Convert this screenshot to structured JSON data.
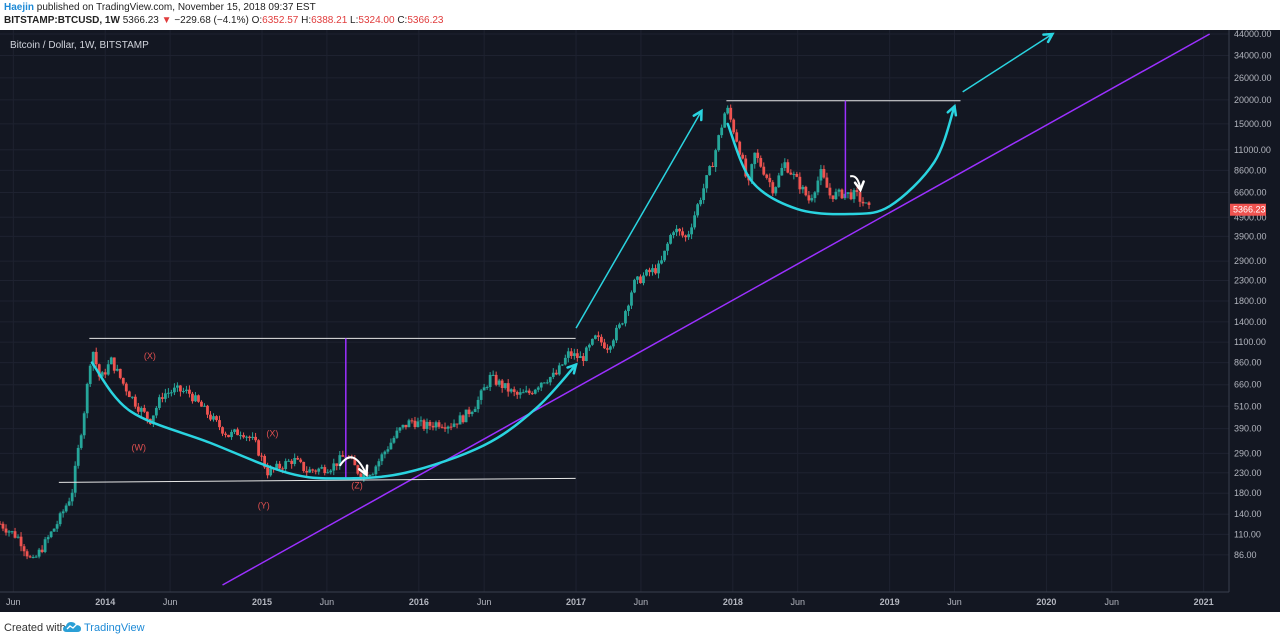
{
  "header": {
    "author": "Haejin",
    "published": "published on TradingView.com, November 15, 2018 09:37 EST",
    "symbol": "BITSTAMP:BTCUSD, 1W",
    "last": "5366.23",
    "change": "−229.68 (−4.1%)",
    "o_label": "O:",
    "o": "6352.57",
    "h_label": "H:",
    "h": "6388.21",
    "l_label": "L:",
    "l": "5324.00",
    "c_label": "C:",
    "c": "5366.23"
  },
  "footer": {
    "created": "Created with",
    "brand": "TradingView"
  },
  "colors": {
    "bg": "#131722",
    "grid": "#1e2230",
    "up": "#26a69a",
    "down": "#ef5350",
    "cyan": "#2ad4e0",
    "purple": "#9b30ff",
    "white": "#e6e6e6",
    "wave": "#e05050"
  },
  "chart_data": {
    "type": "candlestick",
    "title": "Bitcoin / Dollar, 1W, BITSTAMP",
    "log_scale": true,
    "ylim": [
      60,
      44000
    ],
    "xlim": [
      "2013-05-01",
      "2021-03-01"
    ],
    "y_ticks": [
      "86.00",
      "110.00",
      "140.00",
      "180.00",
      "230.00",
      "290.00",
      "390.00",
      "510.00",
      "660.00",
      "860.00",
      "1100.00",
      "1400.00",
      "1800.00",
      "2300.00",
      "2900.00",
      "3900.00",
      "4900.00",
      "6600.00",
      "8600.00",
      "11000.00",
      "15000.00",
      "20000.00",
      "26000.00",
      "34000.00",
      "44000.00"
    ],
    "y_tick_values": [
      86,
      110,
      140,
      180,
      230,
      290,
      390,
      510,
      660,
      860,
      1100,
      1400,
      1800,
      2300,
      2900,
      3900,
      4900,
      6600,
      8600,
      11000,
      15000,
      20000,
      26000,
      34000,
      44000
    ],
    "x_ticks": [
      {
        "label": "Jun",
        "date": "2013-06-01"
      },
      {
        "label": "2014",
        "date": "2014-01-01"
      },
      {
        "label": "Jun",
        "date": "2014-06-01"
      },
      {
        "label": "2015",
        "date": "2015-01-01"
      },
      {
        "label": "Jun",
        "date": "2015-06-01"
      },
      {
        "label": "2016",
        "date": "2016-01-01"
      },
      {
        "label": "Jun",
        "date": "2016-06-01"
      },
      {
        "label": "2017",
        "date": "2017-01-01"
      },
      {
        "label": "Jun",
        "date": "2017-06-01"
      },
      {
        "label": "2018",
        "date": "2018-01-01"
      },
      {
        "label": "Jun",
        "date": "2018-06-01"
      },
      {
        "label": "2019",
        "date": "2019-01-01"
      },
      {
        "label": "Jun",
        "date": "2019-06-01"
      },
      {
        "label": "2020",
        "date": "2020-01-01"
      },
      {
        "label": "Jun",
        "date": "2020-06-01"
      },
      {
        "label": "2021",
        "date": "2021-01-01"
      }
    ],
    "current_price": {
      "label": "5366.23",
      "value": 5366.23
    },
    "close_path": [
      [
        "2013-05-01",
        125
      ],
      [
        "2013-06-15",
        105
      ],
      [
        "2013-07-15",
        78
      ],
      [
        "2013-08-15",
        100
      ],
      [
        "2013-09-15",
        130
      ],
      [
        "2013-10-15",
        180
      ],
      [
        "2013-11-15",
        520
      ],
      [
        "2013-12-01",
        1050
      ],
      [
        "2013-12-20",
        700
      ],
      [
        "2014-01-15",
        880
      ],
      [
        "2014-02-15",
        650
      ],
      [
        "2014-03-15",
        520
      ],
      [
        "2014-04-15",
        430
      ],
      [
        "2014-05-15",
        590
      ],
      [
        "2014-06-15",
        620
      ],
      [
        "2014-07-15",
        600
      ],
      [
        "2014-08-15",
        500
      ],
      [
        "2014-09-15",
        420
      ],
      [
        "2014-10-15",
        360
      ],
      [
        "2014-11-15",
        380
      ],
      [
        "2014-12-15",
        330
      ],
      [
        "2015-01-15",
        230
      ],
      [
        "2015-02-15",
        250
      ],
      [
        "2015-03-15",
        270
      ],
      [
        "2015-04-15",
        235
      ],
      [
        "2015-05-15",
        240
      ],
      [
        "2015-06-15",
        250
      ],
      [
        "2015-07-15",
        285
      ],
      [
        "2015-08-15",
        230
      ],
      [
        "2015-09-15",
        235
      ],
      [
        "2015-10-15",
        300
      ],
      [
        "2015-11-15",
        380
      ],
      [
        "2015-12-15",
        430
      ],
      [
        "2016-01-15",
        400
      ],
      [
        "2016-02-15",
        420
      ],
      [
        "2016-03-15",
        410
      ],
      [
        "2016-04-15",
        450
      ],
      [
        "2016-05-15",
        530
      ],
      [
        "2016-06-15",
        720
      ],
      [
        "2016-07-15",
        650
      ],
      [
        "2016-08-15",
        580
      ],
      [
        "2016-09-15",
        600
      ],
      [
        "2016-10-15",
        700
      ],
      [
        "2016-11-15",
        740
      ],
      [
        "2016-12-15",
        960
      ],
      [
        "2017-01-15",
        900
      ],
      [
        "2017-02-15",
        1150
      ],
      [
        "2017-03-15",
        1050
      ],
      [
        "2017-04-15",
        1350
      ],
      [
        "2017-05-15",
        2200
      ],
      [
        "2017-06-15",
        2500
      ],
      [
        "2017-07-15",
        2700
      ],
      [
        "2017-08-15",
        4300
      ],
      [
        "2017-09-15",
        3800
      ],
      [
        "2017-10-15",
        6000
      ],
      [
        "2017-11-15",
        9500
      ],
      [
        "2017-12-17",
        18500
      ],
      [
        "2018-01-15",
        11500
      ],
      [
        "2018-02-06",
        7000
      ],
      [
        "2018-02-20",
        10500
      ],
      [
        "2018-03-15",
        8500
      ],
      [
        "2018-04-06",
        6800
      ],
      [
        "2018-05-01",
        9400
      ],
      [
        "2018-06-01",
        7500
      ],
      [
        "2018-06-28",
        6000
      ],
      [
        "2018-07-25",
        8300
      ],
      [
        "2018-08-15",
        6400
      ],
      [
        "2018-09-15",
        6500
      ],
      [
        "2018-10-15",
        6400
      ],
      [
        "2018-11-15",
        5366
      ]
    ],
    "annotations": {
      "wave_labels": [
        {
          "text": "(X)",
          "date": "2014-04-15",
          "price": 900
        },
        {
          "text": "(W)",
          "date": "2014-03-20",
          "price": 300
        },
        {
          "text": "(X)",
          "date": "2015-01-25",
          "price": 355
        },
        {
          "text": "(Y)",
          "date": "2015-01-05",
          "price": 150
        },
        {
          "text": "(Z)",
          "date": "2015-08-10",
          "price": 190
        }
      ],
      "white_lines": [
        {
          "from": [
            "2013-11-25",
            1150
          ],
          "to": [
            "2016-12-31",
            1150
          ]
        },
        {
          "from": [
            "2013-09-15",
            205
          ],
          "to": [
            "2016-12-31",
            215
          ]
        },
        {
          "from": [
            "2017-12-17",
            19800
          ],
          "to": [
            "2019-06-15",
            19800
          ]
        }
      ],
      "purple_verticals": [
        {
          "date": "2015-07-15",
          "from": 215,
          "to": 1150
        },
        {
          "date": "2018-09-20",
          "from": 6200,
          "to": 19800
        }
      ],
      "purple_trendline": {
        "from": [
          "2014-10-01",
          60
        ],
        "to": [
          "2021-01-15",
          44000
        ]
      },
      "cyan_curves": [
        [
          [
            "2013-12-01",
            860
          ],
          [
            "2014-03-01",
            480
          ],
          [
            "2014-09-01",
            330
          ],
          [
            "2015-03-01",
            230
          ],
          [
            "2015-07-01",
            215
          ],
          [
            "2015-12-01",
            230
          ],
          [
            "2016-06-01",
            320
          ],
          [
            "2016-10-01",
            500
          ],
          [
            "2017-01-01",
            840
          ]
        ],
        [
          [
            "2017-12-20",
            15000
          ],
          [
            "2018-02-15",
            7500
          ],
          [
            "2018-06-01",
            5400
          ],
          [
            "2018-10-01",
            5100
          ],
          [
            "2019-01-01",
            5600
          ],
          [
            "2019-04-15",
            9500
          ],
          [
            "2019-06-01",
            18500
          ]
        ]
      ],
      "cyan_arrows": [
        {
          "from": [
            "2017-01-01",
            1300
          ],
          "to": [
            "2017-10-20",
            17500
          ]
        },
        {
          "from": [
            "2019-06-20",
            22000
          ],
          "to": [
            "2020-01-15",
            44000
          ]
        }
      ],
      "white_arrows": [
        {
          "from": [
            "2015-07-01",
            250
          ],
          "peak": [
            "2015-08-01",
            320
          ],
          "to": [
            "2015-09-01",
            225
          ]
        },
        {
          "from": [
            "2018-10-01",
            8000
          ],
          "peak": [
            "2018-10-20",
            8200
          ],
          "to": [
            "2018-10-25",
            6800
          ]
        }
      ]
    }
  }
}
